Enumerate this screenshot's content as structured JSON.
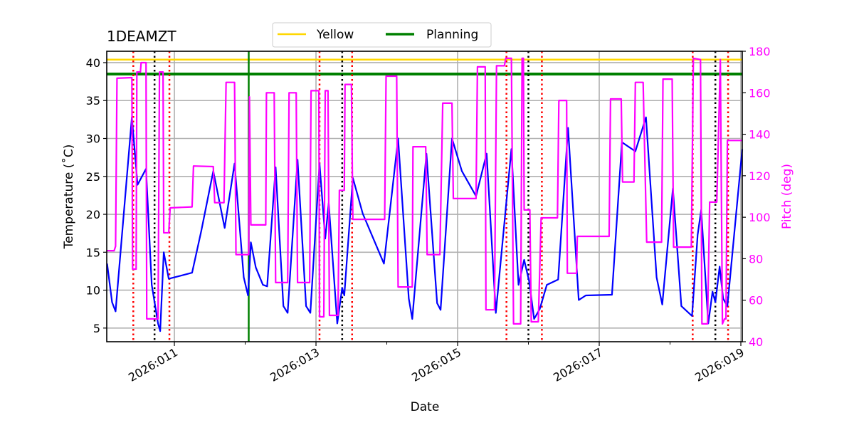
{
  "chart_data": {
    "type": "line",
    "title": "1DEAMZT",
    "xlabel": "Date",
    "ylabel": "Temperature ($^\\circ$C)",
    "ylabel_display": "Temperature (˚C)",
    "y2label": "Pitch (deg)",
    "xlim": [
      10.045,
      19.02
    ],
    "ylim": [
      3.2,
      41.5
    ],
    "y2lim": [
      40,
      180
    ],
    "x_ticks": [
      {
        "value": 11,
        "label": "2026:011"
      },
      {
        "value": 13,
        "label": "2026:013"
      },
      {
        "value": 15,
        "label": "2026:015"
      },
      {
        "value": 17,
        "label": "2026:017"
      },
      {
        "value": 19,
        "label": "2026:019"
      }
    ],
    "x_minor_ticks": [
      12,
      14,
      16,
      18
    ],
    "y_ticks": [
      5,
      10,
      15,
      20,
      25,
      30,
      35,
      40
    ],
    "y2_ticks": [
      40,
      60,
      80,
      100,
      120,
      140,
      160,
      180
    ],
    "grid": true,
    "legend": {
      "placement": "top-center",
      "entries": [
        {
          "name": "Yellow",
          "color": "#ffd700"
        },
        {
          "name": "Planning",
          "color": "#008000"
        }
      ]
    },
    "hlines": [
      {
        "name": "Yellow",
        "y": 40.4,
        "color": "#ffd700"
      },
      {
        "name": "Planning",
        "y": 38.5,
        "color": "#008000"
      }
    ],
    "vline_green": [
      12.05
    ],
    "vlines_red_dotted": [
      10.42,
      10.93,
      13.05,
      13.51,
      15.69,
      16.19,
      18.32,
      18.82
    ],
    "vlines_black_dotted": [
      10.72,
      13.37,
      16.0,
      18.64
    ],
    "series": [
      {
        "axis": "left",
        "color": "#0000ff",
        "x": [
          10.05,
          10.12,
          10.17,
          10.4,
          10.48,
          10.6,
          10.68,
          10.77,
          10.8,
          10.85,
          10.92,
          11.25,
          11.38,
          11.55,
          11.71,
          11.85,
          11.98,
          12.04,
          12.08,
          12.15,
          12.25,
          12.31,
          12.43,
          12.54,
          12.6,
          12.74,
          12.86,
          12.92,
          13.05,
          13.13,
          13.18,
          13.3,
          13.37,
          13.4,
          13.52,
          13.66,
          13.96,
          14.16,
          14.31,
          14.36,
          14.56,
          14.71,
          14.76,
          14.92,
          15.06,
          15.26,
          15.41,
          15.54,
          15.76,
          15.86,
          15.94,
          16.01,
          16.08,
          16.16,
          16.26,
          16.42,
          16.56,
          16.71,
          16.81,
          17.18,
          17.32,
          17.51,
          17.66,
          17.81,
          17.89,
          18.04,
          18.16,
          18.31,
          18.39,
          18.44,
          18.54,
          18.6,
          18.64,
          18.7,
          18.75,
          18.81,
          19.02
        ],
        "y": [
          13.5,
          8.4,
          7.2,
          32.8,
          23.9,
          26,
          10.7,
          5.6,
          4.6,
          15,
          11.5,
          12.3,
          17.8,
          25.7,
          18.2,
          26.7,
          11.7,
          9.3,
          16.3,
          13,
          10.7,
          10.5,
          26.2,
          7.9,
          7,
          27.2,
          7.9,
          7,
          26.7,
          16.8,
          21.5,
          5.6,
          10.3,
          9.3,
          24.8,
          20.1,
          13.5,
          30,
          8.9,
          6.2,
          28,
          8.3,
          7.4,
          30,
          25.7,
          22.4,
          28,
          7,
          28.6,
          10.7,
          14,
          11.2,
          6.2,
          7.5,
          10.7,
          11.4,
          31.4,
          8.7,
          9.3,
          9.4,
          29.5,
          28.3,
          32.8,
          11.7,
          8.1,
          23.4,
          7.9,
          6.6,
          17.3,
          20.6,
          5.6,
          9.8,
          8.4,
          13.1,
          8.9,
          7.9,
          28.6
        ]
      },
      {
        "axis": "right",
        "color": "#ff00ff",
        "step": true,
        "x": [
          10.05,
          10.15,
          10.17,
          10.19,
          10.4,
          10.41,
          10.46,
          10.47,
          10.52,
          10.53,
          10.6,
          10.61,
          10.77,
          10.79,
          10.84,
          10.85,
          10.92,
          10.94,
          11.25,
          11.27,
          11.55,
          11.57,
          11.7,
          11.73,
          11.85,
          11.87,
          12.05,
          12.06,
          12.08,
          12.29,
          12.3,
          12.41,
          12.43,
          12.6,
          12.62,
          12.72,
          12.74,
          12.91,
          12.93,
          13.04,
          13.05,
          13.11,
          13.13,
          13.17,
          13.19,
          13.31,
          13.33,
          13.4,
          13.41,
          13.5,
          13.52,
          13.97,
          13.99,
          14.14,
          14.16,
          14.36,
          14.37,
          14.55,
          14.57,
          14.75,
          14.79,
          14.92,
          14.94,
          15.26,
          15.28,
          15.39,
          15.4,
          15.52,
          15.55,
          15.66,
          15.68,
          15.76,
          15.79,
          15.89,
          15.91,
          15.93,
          15.94,
          16.02,
          16.04,
          16.14,
          16.18,
          16.41,
          16.43,
          16.54,
          16.55,
          16.68,
          16.69,
          17.14,
          17.16,
          17.31,
          17.33,
          17.49,
          17.51,
          17.62,
          17.67,
          17.88,
          17.9,
          18.03,
          18.05,
          18.3,
          18.33,
          18.43,
          18.45,
          18.53,
          18.56,
          18.66,
          18.71,
          18.74,
          18.77,
          18.79,
          18.81,
          19.02
        ],
        "y": [
          83.9,
          83.9,
          86,
          167,
          167.3,
          75,
          75,
          170,
          170,
          174.5,
          174.5,
          51,
          51,
          170,
          170,
          92.5,
          92.5,
          104.5,
          105,
          124.7,
          124.4,
          107,
          107,
          165,
          165,
          82,
          82,
          158,
          96.3,
          96.3,
          160,
          160,
          68.5,
          68.5,
          160,
          160,
          68.5,
          68.5,
          161,
          161,
          52,
          52,
          161,
          161,
          52.7,
          52.7,
          113,
          113,
          164,
          164,
          99,
          99,
          168,
          168,
          66.4,
          66.4,
          134,
          134,
          82,
          82,
          155,
          155,
          109,
          109,
          172.5,
          172.5,
          55.4,
          55.4,
          173,
          173,
          176.6,
          176.6,
          48.6,
          48.6,
          176.6,
          176.6,
          103.5,
          103.5,
          49.6,
          49.6,
          99.7,
          99.7,
          156.3,
          156.3,
          73,
          73,
          90.8,
          90.8,
          157,
          157,
          117,
          117,
          165,
          165,
          88,
          88,
          166.6,
          166.6,
          85.6,
          85.6,
          176.6,
          176,
          48.6,
          48.6,
          107.3,
          107.3,
          176,
          48.6,
          51,
          51,
          137,
          137
        ]
      }
    ]
  }
}
